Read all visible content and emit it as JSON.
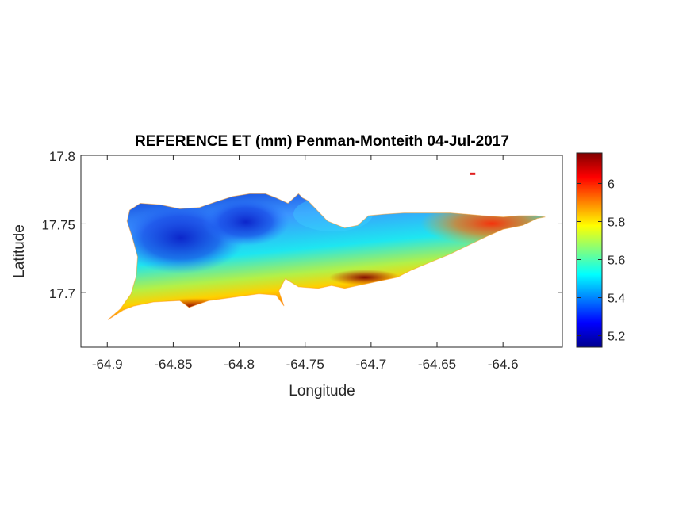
{
  "figure": {
    "title": "REFERENCE ET (mm) Penman-Monteith 04-Jul-2017",
    "xlabel": "Longitude",
    "ylabel": "Latitude"
  },
  "chart_data": {
    "type": "heatmap",
    "title": "REFERENCE ET (mm) Penman-Monteith 04-Jul-2017",
    "xlabel": "Longitude",
    "ylabel": "Latitude",
    "xlim": [
      -64.92,
      -64.555
    ],
    "ylim": [
      17.66,
      17.8
    ],
    "x_ticks": [
      -64.9,
      -64.85,
      -64.8,
      -64.75,
      -64.7,
      -64.65,
      -64.6
    ],
    "x_tick_labels": [
      "-64.9",
      "-64.85",
      "-64.8",
      "-64.75",
      "-64.7",
      "-64.65",
      "-64.6"
    ],
    "y_ticks": [
      17.7,
      17.75,
      17.8
    ],
    "y_tick_labels": [
      "17.7",
      "17.75",
      "17.8"
    ],
    "colorbar": {
      "colormap": "jet",
      "range": [
        5.14,
        6.16
      ],
      "ticks": [
        5.2,
        5.4,
        5.6,
        5.8,
        6
      ],
      "tick_labels": [
        "5.2",
        "5.4",
        "5.6",
        "5.8",
        "6"
      ]
    },
    "grid": false,
    "island_outline": [
      [
        -64.8995,
        17.68
      ],
      [
        -64.888,
        17.687
      ],
      [
        -64.88,
        17.69
      ],
      [
        -64.865,
        17.693
      ],
      [
        -64.845,
        17.694
      ],
      [
        -64.838,
        17.689
      ],
      [
        -64.832,
        17.691
      ],
      [
        -64.823,
        17.694
      ],
      [
        -64.8,
        17.697
      ],
      [
        -64.785,
        17.699
      ],
      [
        -64.772,
        17.698
      ],
      [
        -64.766,
        17.69
      ],
      [
        -64.77,
        17.701
      ],
      [
        -64.765,
        17.71
      ],
      [
        -64.755,
        17.704
      ],
      [
        -64.74,
        17.703
      ],
      [
        -64.73,
        17.705
      ],
      [
        -64.72,
        17.703
      ],
      [
        -64.705,
        17.706
      ],
      [
        -64.69,
        17.709
      ],
      [
        -64.68,
        17.711
      ],
      [
        -64.67,
        17.716
      ],
      [
        -64.655,
        17.722
      ],
      [
        -64.64,
        17.728
      ],
      [
        -64.625,
        17.735
      ],
      [
        -64.612,
        17.741
      ],
      [
        -64.6,
        17.746
      ],
      [
        -64.585,
        17.749
      ],
      [
        -64.574,
        17.754
      ],
      [
        -64.568,
        17.755
      ],
      [
        -64.575,
        17.756
      ],
      [
        -64.588,
        17.756
      ],
      [
        -64.6,
        17.755
      ],
      [
        -64.615,
        17.756
      ],
      [
        -64.628,
        17.757
      ],
      [
        -64.64,
        17.758
      ],
      [
        -64.655,
        17.758
      ],
      [
        -64.675,
        17.758
      ],
      [
        -64.69,
        17.757
      ],
      [
        -64.702,
        17.756
      ],
      [
        -64.71,
        17.749
      ],
      [
        -64.72,
        17.747
      ],
      [
        -64.733,
        17.752
      ],
      [
        -64.742,
        17.761
      ],
      [
        -64.748,
        17.767
      ],
      [
        -64.752,
        17.769
      ],
      [
        -64.755,
        17.772
      ],
      [
        -64.763,
        17.765
      ],
      [
        -64.772,
        17.769
      ],
      [
        -64.78,
        17.772
      ],
      [
        -64.792,
        17.772
      ],
      [
        -64.805,
        17.77
      ],
      [
        -64.818,
        17.766
      ],
      [
        -64.83,
        17.762
      ],
      [
        -64.845,
        17.761
      ],
      [
        -64.86,
        17.764
      ],
      [
        -64.875,
        17.765
      ],
      [
        -64.883,
        17.76
      ],
      [
        -64.885,
        17.752
      ],
      [
        -64.881,
        17.74
      ],
      [
        -64.877,
        17.726
      ],
      [
        -64.878,
        17.712
      ],
      [
        -64.882,
        17.699
      ],
      [
        -64.89,
        17.688
      ],
      [
        -64.8995,
        17.68
      ]
    ],
    "islet": [
      [
        -64.625,
        17.7865
      ],
      [
        -64.621,
        17.7865
      ]
    ],
    "field_pattern": {
      "lowest_values_area": "western interior uplands (around -64.85, 17.73)",
      "highest_values_area": "southern coast and eastern tip (around -64.84, 17.69 and -64.57, 17.755)",
      "trend": "ET increases from the north-west interior toward the south coast and the east"
    }
  }
}
